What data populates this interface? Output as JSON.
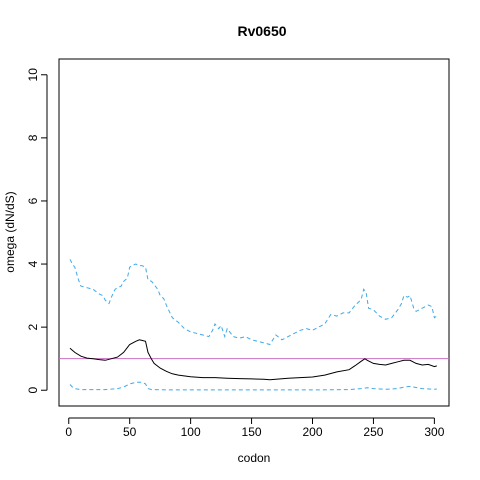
{
  "chart_data": {
    "type": "line",
    "title": "Rv0650",
    "xlabel": "codon",
    "ylabel": "omega (dN/dS)",
    "xlim": [
      -8,
      312
    ],
    "ylim": [
      -0.5,
      10.5
    ],
    "x_ticks": [
      0,
      50,
      100,
      150,
      200,
      250,
      300
    ],
    "y_ticks": [
      0,
      2,
      4,
      6,
      8,
      10
    ],
    "reference_line": {
      "y": 1,
      "color": "#c86fc2"
    },
    "colors": {
      "mean": "#000000",
      "bounds": "#3fa9e6"
    },
    "series": [
      {
        "role": "upper",
        "style": "dashed",
        "x": [
          1,
          3,
          5,
          8,
          10,
          15,
          20,
          25,
          28,
          30,
          33,
          35,
          38,
          40,
          43,
          45,
          48,
          50,
          52,
          55,
          58,
          60,
          63,
          65,
          68,
          70,
          73,
          75,
          78,
          80,
          85,
          90,
          95,
          100,
          105,
          110,
          115,
          118,
          120,
          123,
          125,
          128,
          130,
          135,
          140,
          145,
          150,
          155,
          160,
          165,
          170,
          175,
          180,
          185,
          190,
          195,
          200,
          205,
          210,
          215,
          220,
          225,
          230,
          235,
          238,
          240,
          242,
          244,
          246,
          250,
          255,
          260,
          265,
          270,
          273,
          275,
          278,
          280,
          283,
          285,
          290,
          295,
          298,
          300,
          302
        ],
        "y": [
          4.15,
          4.0,
          3.9,
          3.5,
          3.3,
          3.25,
          3.2,
          3.05,
          3.0,
          2.85,
          2.75,
          2.95,
          3.2,
          3.25,
          3.3,
          3.45,
          3.55,
          3.9,
          3.95,
          4.0,
          3.95,
          3.95,
          3.9,
          3.5,
          3.45,
          3.35,
          3.2,
          3.0,
          2.9,
          2.7,
          2.3,
          2.15,
          1.95,
          1.85,
          1.8,
          1.75,
          1.7,
          1.9,
          2.1,
          1.95,
          2.05,
          1.7,
          1.95,
          1.7,
          1.65,
          1.7,
          1.6,
          1.55,
          1.5,
          1.45,
          1.75,
          1.6,
          1.7,
          1.8,
          1.9,
          1.95,
          1.9,
          2.0,
          2.1,
          2.4,
          2.35,
          2.45,
          2.45,
          2.7,
          2.8,
          2.9,
          3.2,
          3.1,
          2.6,
          2.55,
          2.35,
          2.25,
          2.3,
          2.55,
          2.75,
          3.0,
          2.95,
          3.0,
          2.6,
          2.5,
          2.6,
          2.7,
          2.65,
          2.3,
          2.35
        ]
      },
      {
        "role": "mean",
        "style": "solid",
        "x": [
          1,
          5,
          10,
          15,
          20,
          25,
          30,
          35,
          40,
          45,
          50,
          55,
          58,
          60,
          63,
          65,
          68,
          70,
          75,
          80,
          85,
          90,
          100,
          110,
          120,
          130,
          140,
          150,
          160,
          165,
          170,
          180,
          190,
          200,
          210,
          220,
          230,
          235,
          240,
          243,
          245,
          250,
          255,
          260,
          265,
          270,
          275,
          280,
          285,
          290,
          295,
          300,
          302
        ],
        "y": [
          1.33,
          1.2,
          1.08,
          1.02,
          1.0,
          0.97,
          0.95,
          1.0,
          1.05,
          1.2,
          1.45,
          1.55,
          1.6,
          1.58,
          1.55,
          1.2,
          0.98,
          0.85,
          0.7,
          0.6,
          0.52,
          0.48,
          0.43,
          0.4,
          0.4,
          0.38,
          0.37,
          0.36,
          0.35,
          0.33,
          0.35,
          0.38,
          0.4,
          0.42,
          0.48,
          0.58,
          0.65,
          0.78,
          0.92,
          1.0,
          0.95,
          0.85,
          0.82,
          0.8,
          0.85,
          0.9,
          0.95,
          0.95,
          0.85,
          0.8,
          0.82,
          0.75,
          0.77
        ]
      },
      {
        "role": "lower",
        "style": "dashed",
        "x": [
          1,
          3,
          5,
          10,
          20,
          30,
          40,
          45,
          50,
          55,
          60,
          63,
          65,
          68,
          70,
          80,
          100,
          150,
          200,
          230,
          240,
          245,
          250,
          260,
          270,
          275,
          280,
          290,
          300,
          302
        ],
        "y": [
          0.18,
          0.1,
          0.05,
          0.02,
          0.02,
          0.02,
          0.05,
          0.1,
          0.2,
          0.25,
          0.25,
          0.2,
          0.05,
          0.02,
          0.02,
          0.01,
          0.01,
          0.01,
          0.01,
          0.02,
          0.05,
          0.08,
          0.05,
          0.03,
          0.05,
          0.1,
          0.12,
          0.05,
          0.03,
          0.04
        ]
      }
    ]
  }
}
